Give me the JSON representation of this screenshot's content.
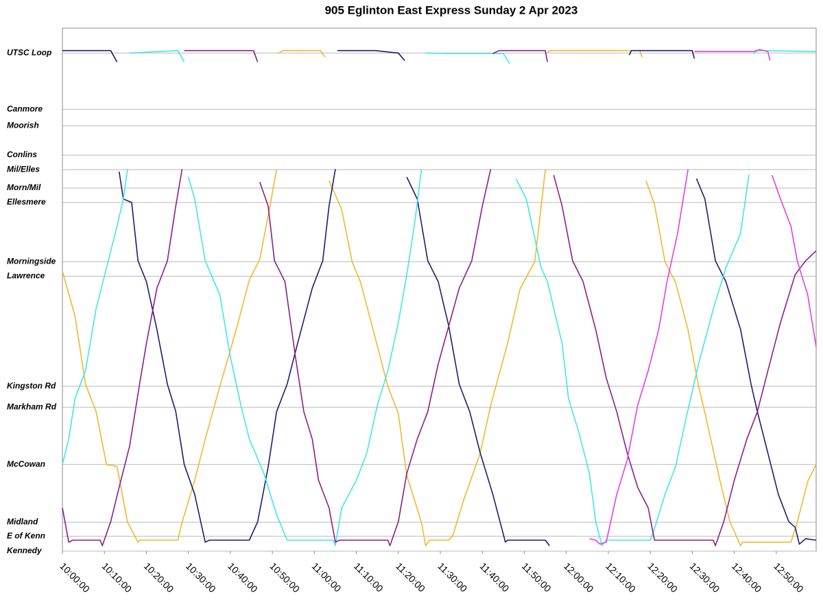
{
  "chart_data": {
    "type": "line",
    "title": "905 Eglinton East Express Sunday 2 Apr 2023",
    "xlim": [
      "10:00:00",
      "12:59:30"
    ],
    "xticks": [
      "10:00:00",
      "10:10:00",
      "10:20:00",
      "10:30:00",
      "10:40:00",
      "10:50:00",
      "11:00:00",
      "11:10:00",
      "11:20:00",
      "11:30:00",
      "11:40:00",
      "11:50:00",
      "12:00:00",
      "12:10:00",
      "12:20:00",
      "12:30:00",
      "12:40:00",
      "12:50:00"
    ],
    "ylim": [
      0,
      10.5
    ],
    "yticks": [
      {
        "value": 10.0,
        "label": "UTSC Loop"
      },
      {
        "value": 8.87,
        "label": "Canmore"
      },
      {
        "value": 8.54,
        "label": "Moorish"
      },
      {
        "value": 7.95,
        "label": "Conlins"
      },
      {
        "value": 7.66,
        "label": "Mil/Elles"
      },
      {
        "value": 7.29,
        "label": "Morn/Mil"
      },
      {
        "value": 7.0,
        "label": "Ellesmere"
      },
      {
        "value": 5.81,
        "label": "Morningside"
      },
      {
        "value": 5.52,
        "label": "Lawrence"
      },
      {
        "value": 3.31,
        "label": "Kingston Rd"
      },
      {
        "value": 2.89,
        "label": "Markham Rd"
      },
      {
        "value": 1.74,
        "label": "McCowan"
      },
      {
        "value": 0.58,
        "label": "Midland"
      },
      {
        "value": 0.3,
        "label": "E of Kenn"
      },
      {
        "value": 0.0,
        "label": "Kennedy"
      }
    ],
    "grid": true,
    "series": [
      {
        "color": "#f2b72a",
        "x": [
          "10:00:00",
          "10:03:00",
          "10:05:30",
          "10:08:00",
          "10:10:30",
          "10:13:00",
          "10:15:30",
          "10:18:00",
          "10:18:30",
          "10:27:30",
          "10:28:30",
          "10:31:30",
          "10:34:00",
          "10:37:30",
          "10:41:30",
          "10:44:30",
          "10:47:00",
          "10:49:30",
          "10:51:00",
          "10:51:30",
          "10:51:30",
          "10:52:30",
          "11:01:30",
          "11:02:30",
          "11:03:30",
          "11:03:30",
          "11:06:30",
          "11:09:00",
          "11:11:00",
          "11:14:00",
          "11:17:30",
          "11:20:00",
          "11:22:00",
          "11:25:30",
          "11:26:30",
          "11:27:30",
          "11:32:00",
          "11:33:00",
          "11:35:30",
          "11:39:30",
          "11:42:00",
          "11:46:00",
          "11:49:00",
          "11:52:30",
          "11:55:00",
          "11:55:30",
          "11:55:30",
          "11:56:00",
          "12:17:30",
          "12:18:00",
          "12:19:00",
          "12:19:00",
          "12:21:00",
          "12:23:30",
          "12:26:00",
          "12:29:00",
          "12:31:30",
          "12:33:00",
          "12:36:30",
          "12:39:00",
          "12:41:30",
          "12:42:00",
          "12:53:30",
          "12:55:00",
          "12:57:30",
          "12:59:30"
        ],
        "values": [
          5.62,
          4.72,
          3.35,
          2.81,
          1.74,
          1.7,
          0.58,
          0.18,
          0.22,
          0.22,
          0.58,
          1.42,
          2.25,
          3.31,
          4.48,
          5.44,
          5.86,
          6.96,
          7.66,
          null,
          10.0,
          10.05,
          10.05,
          9.92,
          null,
          7.44,
          6.86,
          5.81,
          5.4,
          4.44,
          3.31,
          2.76,
          1.52,
          0.58,
          0.11,
          0.22,
          0.22,
          0.32,
          1.01,
          1.97,
          2.93,
          4.17,
          5.27,
          5.81,
          7.66,
          null,
          10.0,
          10.05,
          10.05,
          9.92,
          null,
          7.44,
          6.96,
          5.81,
          5.4,
          4.44,
          3.31,
          2.78,
          1.45,
          0.58,
          0.11,
          0.18,
          0.18,
          0.58,
          1.4,
          1.74
        ]
      },
      {
        "color": "#1c1c6e",
        "x": [
          "10:00:00",
          "10:11:30",
          "10:13:00",
          "10:13:30",
          "10:13:30",
          "10:14:30",
          "10:16:30",
          "10:18:00",
          "10:20:00",
          "10:22:30",
          "10:25:00",
          "10:27:00",
          "10:29:00",
          "10:31:30",
          "10:34:00",
          "10:35:00",
          "10:44:30",
          "10:46:30",
          "10:49:00",
          "10:51:00",
          "10:53:30",
          "10:56:00",
          "10:59:30",
          "11:02:00",
          "11:03:30",
          "11:05:00",
          "11:05:30",
          "11:05:30",
          "11:14:30",
          "11:20:00",
          "11:21:30",
          "11:22:00",
          "11:22:00",
          "11:24:30",
          "11:27:00",
          "11:29:30",
          "11:32:00",
          "11:34:30",
          "11:37:00",
          "11:39:30",
          "11:42:30",
          "11:45:30",
          "11:46:00",
          "11:55:00",
          "11:56:00",
          "12:15:00",
          "12:15:00",
          "12:15:30",
          "12:30:00",
          "12:30:30",
          "12:31:00",
          "12:31:00",
          "12:33:00",
          "12:35:30",
          "12:38:00",
          "12:41:30",
          "12:44:00",
          "12:45:30",
          "12:48:00",
          "12:50:30",
          "12:53:00",
          "12:54:30",
          "12:55:30",
          "12:57:00",
          "12:59:30"
        ],
        "values": [
          10.05,
          10.05,
          9.82,
          null,
          7.62,
          7.07,
          7.0,
          5.83,
          5.41,
          4.45,
          3.35,
          2.8,
          1.74,
          1.14,
          0.18,
          0.22,
          0.22,
          0.59,
          1.69,
          2.8,
          3.35,
          4.17,
          5.28,
          5.83,
          6.93,
          7.67,
          null,
          10.05,
          10.05,
          10.0,
          9.85,
          null,
          7.51,
          7.07,
          5.83,
          5.41,
          4.52,
          3.35,
          2.8,
          1.97,
          1.14,
          0.18,
          0.22,
          0.22,
          0.11,
          null,
          9.96,
          10.05,
          10.05,
          9.89,
          null,
          7.48,
          7.07,
          5.83,
          5.41,
          4.45,
          3.35,
          2.8,
          1.97,
          1.14,
          0.59,
          0.48,
          0.14,
          0.25,
          0.22
        ]
      },
      {
        "color": "#3ee6ee",
        "x": [
          "10:00:00",
          "10:01:30",
          "10:03:00",
          "10:05:30",
          "10:08:00",
          "10:10:30",
          "10:13:00",
          "10:14:30",
          "10:15:30",
          "10:16:00",
          "10:16:00",
          "10:27:30",
          "10:29:00",
          "10:30:00",
          "10:30:00",
          "10:31:30",
          "10:34:00",
          "10:37:30",
          "10:40:00",
          "10:42:30",
          "10:44:30",
          "10:48:00",
          "10:51:00",
          "10:53:30",
          "11:04:30",
          "11:05:00",
          "11:06:30",
          "11:10:00",
          "11:12:30",
          "11:15:00",
          "11:17:30",
          "11:20:00",
          "11:22:00",
          "11:24:00",
          "11:25:30",
          "11:26:30",
          "11:26:30",
          "11:32:00",
          "11:45:00",
          "11:46:30",
          "11:48:00",
          "11:48:00",
          "11:50:30",
          "11:54:00",
          "11:55:30",
          "11:59:00",
          "12:00:30",
          "12:03:00",
          "12:05:30",
          "12:07:00",
          "12:08:30",
          "12:09:30",
          "12:20:00",
          "12:21:00",
          "12:23:30",
          "12:26:00",
          "12:28:30",
          "12:31:30",
          "12:35:00",
          "12:38:00",
          "12:41:30",
          "12:43:30",
          "12:44:30",
          "12:44:30",
          "12:45:30",
          "12:59:30"
        ],
        "values": [
          1.74,
          2.25,
          3.07,
          3.62,
          4.86,
          5.69,
          6.52,
          7.07,
          7.67,
          null,
          10.0,
          10.05,
          9.82,
          null,
          7.51,
          7.07,
          5.83,
          5.14,
          3.9,
          2.93,
          2.25,
          1.56,
          0.73,
          0.22,
          0.22,
          0.11,
          0.87,
          1.42,
          1.97,
          2.93,
          3.62,
          4.59,
          5.55,
          6.65,
          7.67,
          null,
          10.0,
          9.99,
          9.99,
          9.79,
          null,
          7.48,
          7.07,
          5.69,
          5.41,
          4.17,
          3.07,
          2.38,
          1.56,
          0.59,
          0.11,
          0.22,
          0.22,
          0.45,
          1.14,
          1.69,
          2.66,
          3.76,
          4.86,
          5.69,
          6.38,
          7.56,
          null,
          9.99,
          10.05,
          10.03
        ]
      },
      {
        "color": "#8b1c8b",
        "x": [
          "10:00:00",
          "10:01:30",
          "10:02:30",
          "10:09:00",
          "10:09:30",
          "10:11:30",
          "10:13:30",
          "10:16:00",
          "10:18:30",
          "10:20:00",
          "10:22:30",
          "10:25:00",
          "10:27:00",
          "10:28:30",
          "10:29:00",
          "10:29:00",
          "10:45:30",
          "10:46:30",
          "10:47:00",
          "10:47:00",
          "10:49:00",
          "10:50:30",
          "10:53:00",
          "10:55:30",
          "10:57:30",
          "10:59:30",
          "11:01:00",
          "11:03:30",
          "11:05:00",
          "11:06:00",
          "11:17:30",
          "11:18:00",
          "11:20:00",
          "11:22:00",
          "11:24:30",
          "11:27:00",
          "11:29:30",
          "11:32:00",
          "11:34:30",
          "11:37:30",
          "11:40:00",
          "11:42:00",
          "11:42:30",
          "11:42:30",
          "11:44:00",
          "11:55:00",
          "11:55:30",
          "11:57:00",
          "11:57:00",
          "11:59:00",
          "12:01:30",
          "12:04:00",
          "12:07:00",
          "12:09:30",
          "12:12:00",
          "12:14:30",
          "12:17:00",
          "12:19:30",
          "12:21:00",
          "12:35:00",
          "12:35:30",
          "12:37:30",
          "12:40:00",
          "12:43:00",
          "12:45:30",
          "12:48:00",
          "12:51:00",
          "12:54:30",
          "12:57:00",
          "12:59:30"
        ],
        "values": [
          0.87,
          0.18,
          0.22,
          0.22,
          0.11,
          0.59,
          1.28,
          2.11,
          3.42,
          4.17,
          5.28,
          5.83,
          6.93,
          7.67,
          null,
          10.05,
          10.05,
          9.82,
          null,
          7.41,
          6.93,
          5.83,
          5.41,
          3.9,
          2.8,
          2.25,
          1.42,
          0.87,
          0.18,
          0.22,
          0.22,
          0.11,
          0.59,
          1.56,
          2.25,
          2.8,
          3.76,
          4.52,
          5.28,
          5.83,
          6.93,
          7.67,
          null,
          9.99,
          10.05,
          10.05,
          9.82,
          null,
          7.55,
          6.93,
          5.83,
          5.41,
          4.45,
          3.48,
          2.8,
          1.97,
          1.28,
          0.87,
          0.22,
          0.22,
          0.11,
          0.59,
          1.42,
          2.25,
          2.8,
          3.62,
          4.59,
          5.55,
          5.83,
          6.03
        ]
      },
      {
        "color": "#e63ce6",
        "x": [
          "12:05:30",
          "12:07:00",
          "12:08:00",
          "12:09:30",
          "12:12:00",
          "12:14:30",
          "12:17:00",
          "12:19:30",
          "12:22:00",
          "12:24:00",
          "12:26:30",
          "12:29:00",
          "12:30:30",
          "12:30:30",
          "12:44:30",
          "12:46:00",
          "12:48:00",
          "12:48:30",
          "12:49:00",
          "12:49:00",
          "12:51:00",
          "12:53:30",
          "12:55:00",
          "12:57:30",
          "12:59:30"
        ],
        "values": [
          0.25,
          0.22,
          0.14,
          0.18,
          1.14,
          1.83,
          2.93,
          3.62,
          4.45,
          5.41,
          6.38,
          7.67,
          null,
          10.03,
          10.03,
          10.07,
          10.03,
          9.85,
          null,
          7.55,
          7.07,
          6.52,
          5.83,
          5.14,
          4.1
        ]
      }
    ]
  }
}
